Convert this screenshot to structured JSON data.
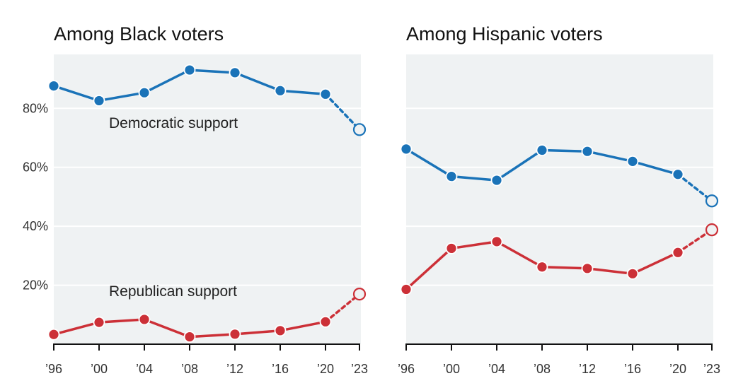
{
  "chart_data": [
    {
      "type": "line",
      "title": "Among Black voters",
      "xlabel": "",
      "ylabel": "",
      "x": [
        1996,
        2000,
        2004,
        2008,
        2012,
        2016,
        2020,
        2023
      ],
      "xtick_labels": [
        "’96",
        "’00",
        "’04",
        "’08",
        "’12",
        "’16",
        "’20",
        "’23"
      ],
      "ylim": [
        0,
        98
      ],
      "yticks": [
        20,
        40,
        60,
        80
      ],
      "ytick_labels": [
        "20%",
        "40%",
        "60%",
        "80%"
      ],
      "grid": true,
      "series": [
        {
          "name": "Democratic support",
          "color": "#1a73b8",
          "values": [
            87.6,
            82.6,
            85.3,
            93.0,
            92.1,
            86.0,
            84.8,
            72.8
          ],
          "projected_last": true
        },
        {
          "name": "Republican support",
          "color": "#cc3037",
          "values": [
            3.3,
            7.4,
            8.4,
            2.5,
            3.4,
            4.6,
            7.6,
            17.0
          ],
          "projected_last": true
        }
      ],
      "annotations": [
        "Democratic support",
        "Republican support"
      ]
    },
    {
      "type": "line",
      "title": "Among Hispanic voters",
      "xlabel": "",
      "ylabel": "",
      "x": [
        1996,
        2000,
        2004,
        2008,
        2012,
        2016,
        2020,
        2023
      ],
      "xtick_labels": [
        "’96",
        "’00",
        "’04",
        "’08",
        "’12",
        "’16",
        "’20",
        "’23"
      ],
      "ylim": [
        0,
        98
      ],
      "yticks": [
        20,
        40,
        60,
        80
      ],
      "ytick_labels": [],
      "grid": true,
      "series": [
        {
          "name": "Democratic support",
          "color": "#1a73b8",
          "values": [
            66.2,
            56.9,
            55.6,
            65.8,
            65.4,
            62.0,
            57.6,
            48.6
          ],
          "projected_last": true
        },
        {
          "name": "Republican support",
          "color": "#cc3037",
          "values": [
            18.6,
            32.5,
            34.8,
            26.2,
            25.7,
            23.9,
            31.1,
            38.8
          ],
          "projected_last": true
        }
      ],
      "annotations": []
    }
  ],
  "colors": {
    "plot_bg": "#eff2f3",
    "grid": "#ffffff",
    "axis": "#121212"
  }
}
